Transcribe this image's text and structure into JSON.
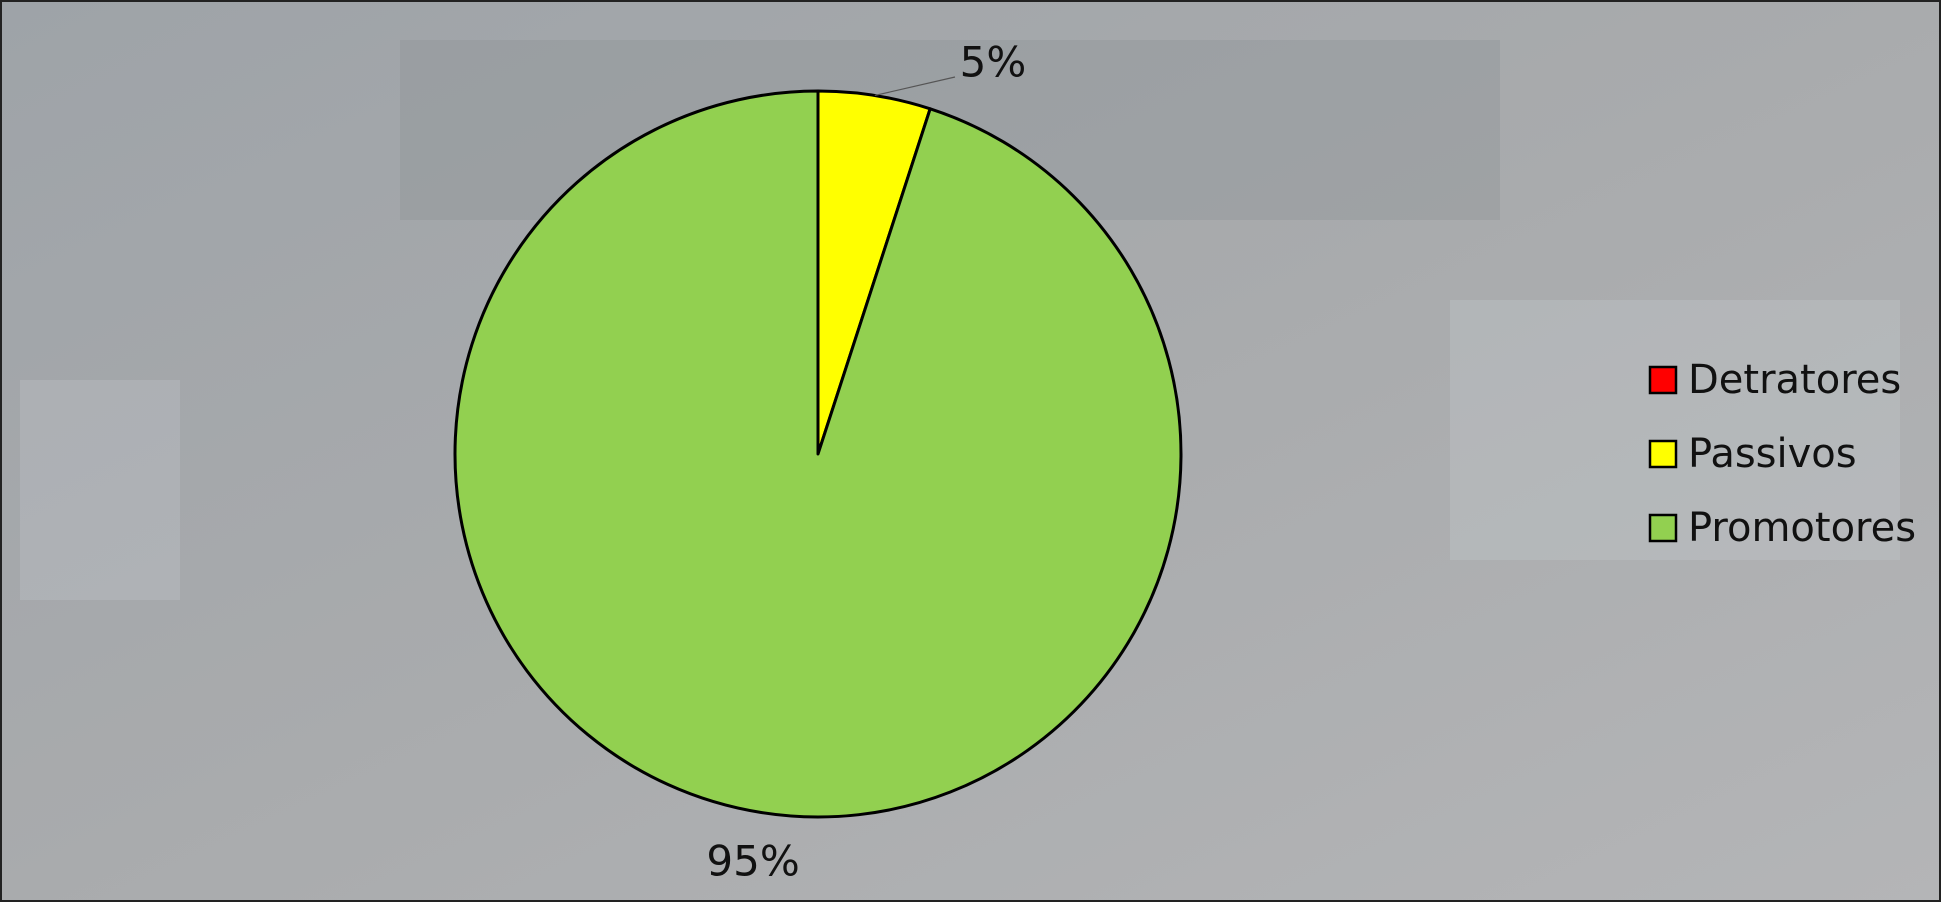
{
  "chart_data": {
    "type": "pie",
    "categories": [
      "Detratores",
      "Passivos",
      "Promotores"
    ],
    "values": [
      0,
      5,
      95
    ],
    "value_labels": [
      null,
      "5%",
      "95%"
    ],
    "colors": [
      "#ff0000",
      "#ffff00",
      "#92d050"
    ],
    "legend": "right"
  }
}
